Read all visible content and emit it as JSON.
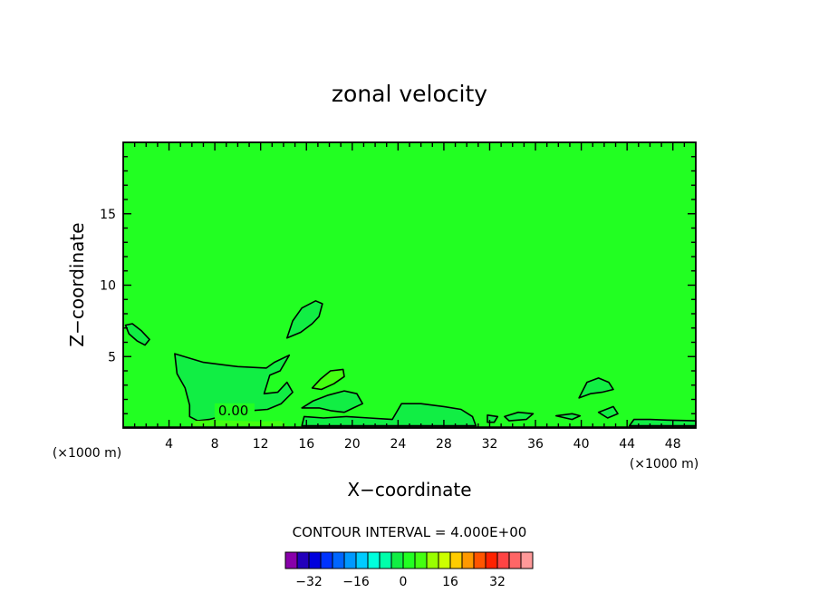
{
  "chart_data": {
    "type": "contour",
    "title": "zonal velocity",
    "xlabel": "X−coordinate",
    "ylabel": "Z−coordinate",
    "x_unit_left": "(×1000 m)",
    "x_unit_right": "(×1000 m)",
    "xlim": [
      0,
      50
    ],
    "ylim": [
      0,
      20
    ],
    "x_ticks": [
      4,
      8,
      12,
      16,
      20,
      24,
      28,
      32,
      36,
      40,
      44,
      48
    ],
    "y_ticks": [
      5,
      10,
      15
    ],
    "x_tick_labels": [
      "4",
      "8",
      "12",
      "16",
      "20",
      "24",
      "28",
      "32",
      "36",
      "40",
      "44",
      "48"
    ],
    "y_tick_labels": [
      "5",
      "10",
      "15"
    ],
    "contour_label": "0.00",
    "contour_label_pos": [
      8.3,
      0.9
    ],
    "contour_interval_text": "CONTOUR INTERVAL = 4.000E+00",
    "background_color": "#22ff22",
    "regions": [
      {
        "fill": "#11ee44",
        "outline": true,
        "points": [
          [
            4.5,
            5.2
          ],
          [
            7,
            4.6
          ],
          [
            10,
            4.3
          ],
          [
            12.5,
            4.2
          ],
          [
            13.2,
            4.6
          ],
          [
            14.5,
            5.1
          ],
          [
            13.7,
            4
          ],
          [
            12.8,
            3.7
          ],
          [
            12.3,
            2.4
          ],
          [
            13.5,
            2.5
          ],
          [
            14.3,
            3.2
          ],
          [
            14.8,
            2.5
          ],
          [
            13.8,
            1.7
          ],
          [
            12.6,
            1.3
          ],
          [
            11,
            1.2
          ],
          [
            9.5,
            1
          ],
          [
            7.5,
            0.6
          ],
          [
            6.5,
            0.5
          ],
          [
            5.8,
            0.8
          ],
          [
            5.8,
            1.6
          ],
          [
            5.4,
            2.8
          ],
          [
            4.7,
            3.8
          ]
        ]
      },
      {
        "fill": "#11ee44",
        "outline": true,
        "points": [
          [
            14.3,
            6.3
          ],
          [
            14.8,
            7.5
          ],
          [
            15.6,
            8.4
          ],
          [
            16.8,
            8.9
          ],
          [
            17.4,
            8.7
          ],
          [
            17.1,
            7.8
          ],
          [
            16.5,
            7.3
          ],
          [
            15.5,
            6.7
          ]
        ]
      },
      {
        "fill": "#11ee44",
        "outline": true,
        "points": [
          [
            0.2,
            7.2
          ],
          [
            0.8,
            7.3
          ],
          [
            1.6,
            6.8
          ],
          [
            2.3,
            6.2
          ],
          [
            1.9,
            5.8
          ],
          [
            1.2,
            6.1
          ],
          [
            0.5,
            6.6
          ]
        ]
      },
      {
        "fill": "#44ff11",
        "outline": true,
        "points": [
          [
            16.5,
            2.8
          ],
          [
            17.2,
            3.4
          ],
          [
            18.1,
            4
          ],
          [
            19.2,
            4.1
          ],
          [
            19.3,
            3.6
          ],
          [
            18.4,
            3.1
          ],
          [
            17.3,
            2.7
          ]
        ]
      },
      {
        "fill": "#11ee44",
        "outline": true,
        "points": [
          [
            15.6,
            1.4
          ],
          [
            16.6,
            1.9
          ],
          [
            17.9,
            2.3
          ],
          [
            19.3,
            2.6
          ],
          [
            20.4,
            2.4
          ],
          [
            20.9,
            1.7
          ],
          [
            20.1,
            1.4
          ],
          [
            19.3,
            1.1
          ],
          [
            18.2,
            1.2
          ],
          [
            17.1,
            1.4
          ]
        ]
      },
      {
        "fill": "#11ee44",
        "outline": true,
        "points": [
          [
            15.6,
            0.15
          ],
          [
            15.8,
            0.8
          ],
          [
            17.5,
            0.7
          ],
          [
            19.5,
            0.8
          ],
          [
            21.5,
            0.7
          ],
          [
            23.5,
            0.6
          ],
          [
            24.3,
            1.7
          ],
          [
            26,
            1.7
          ],
          [
            28,
            1.5
          ],
          [
            29.5,
            1.3
          ],
          [
            30.5,
            0.8
          ],
          [
            30.8,
            0.15
          ]
        ]
      },
      {
        "fill": "#11ee44",
        "outline": true,
        "points": [
          [
            39.8,
            2.1
          ],
          [
            40.5,
            3.2
          ],
          [
            41.5,
            3.5
          ],
          [
            42.4,
            3.2
          ],
          [
            42.8,
            2.7
          ],
          [
            41.8,
            2.5
          ],
          [
            40.8,
            2.4
          ]
        ]
      },
      {
        "fill": "#11ee44",
        "outline": true,
        "points": [
          [
            33.3,
            0.8
          ],
          [
            34.5,
            1.1
          ],
          [
            35.8,
            1
          ],
          [
            35.2,
            0.6
          ],
          [
            33.7,
            0.5
          ]
        ]
      },
      {
        "fill": "#11ee44",
        "outline": true,
        "points": [
          [
            37.8,
            0.85
          ],
          [
            39.2,
            1
          ],
          [
            39.9,
            0.85
          ],
          [
            39.2,
            0.6
          ]
        ]
      },
      {
        "fill": "#11ee44",
        "outline": true,
        "points": [
          [
            41.5,
            1.1
          ],
          [
            42.8,
            1.5
          ],
          [
            43.2,
            1
          ],
          [
            42.3,
            0.7
          ]
        ]
      },
      {
        "fill": "#11ee44",
        "outline": true,
        "points": [
          [
            31.8,
            0.9
          ],
          [
            32.7,
            0.8
          ],
          [
            32.4,
            0.4
          ],
          [
            31.8,
            0.4
          ]
        ]
      },
      {
        "fill": "#11ee44",
        "outline": true,
        "points": [
          [
            44.2,
            0.15
          ],
          [
            44.6,
            0.6
          ],
          [
            46,
            0.6
          ],
          [
            47.5,
            0.55
          ],
          [
            50,
            0.5
          ],
          [
            50,
            0.15
          ]
        ]
      },
      {
        "fill": "#44ff11",
        "outline": false,
        "points": [
          [
            6,
            0.15
          ],
          [
            6.3,
            0.5
          ],
          [
            8,
            0.55
          ],
          [
            10,
            0.5
          ],
          [
            12,
            0.45
          ],
          [
            13.8,
            0.5
          ],
          [
            14.3,
            0.15
          ]
        ]
      }
    ],
    "colorbar": {
      "levels": [
        "-36",
        "-32",
        "-28",
        "-24",
        "-20",
        "-16",
        "-12",
        "-8",
        "-4",
        "0",
        "4",
        "8",
        "12",
        "16",
        "20",
        "24",
        "28",
        "32",
        "36"
      ],
      "colors": [
        "#8800aa",
        "#2200bb",
        "#0000dd",
        "#0033ff",
        "#0066ff",
        "#0099ff",
        "#00ccff",
        "#00ffdd",
        "#00ffaa",
        "#11ee44",
        "#22ff22",
        "#44ff11",
        "#99ff00",
        "#ccff00",
        "#ffcc00",
        "#ff9900",
        "#ff5500",
        "#ff2200",
        "#ff4444",
        "#ff6666",
        "#ff9999"
      ],
      "tick_labels": [
        {
          "level": "-32",
          "text": "−32"
        },
        {
          "level": "-16",
          "text": "−16"
        },
        {
          "level": "0",
          "text": "0"
        },
        {
          "level": "16",
          "text": "16"
        },
        {
          "level": "32",
          "text": "32"
        }
      ]
    }
  }
}
